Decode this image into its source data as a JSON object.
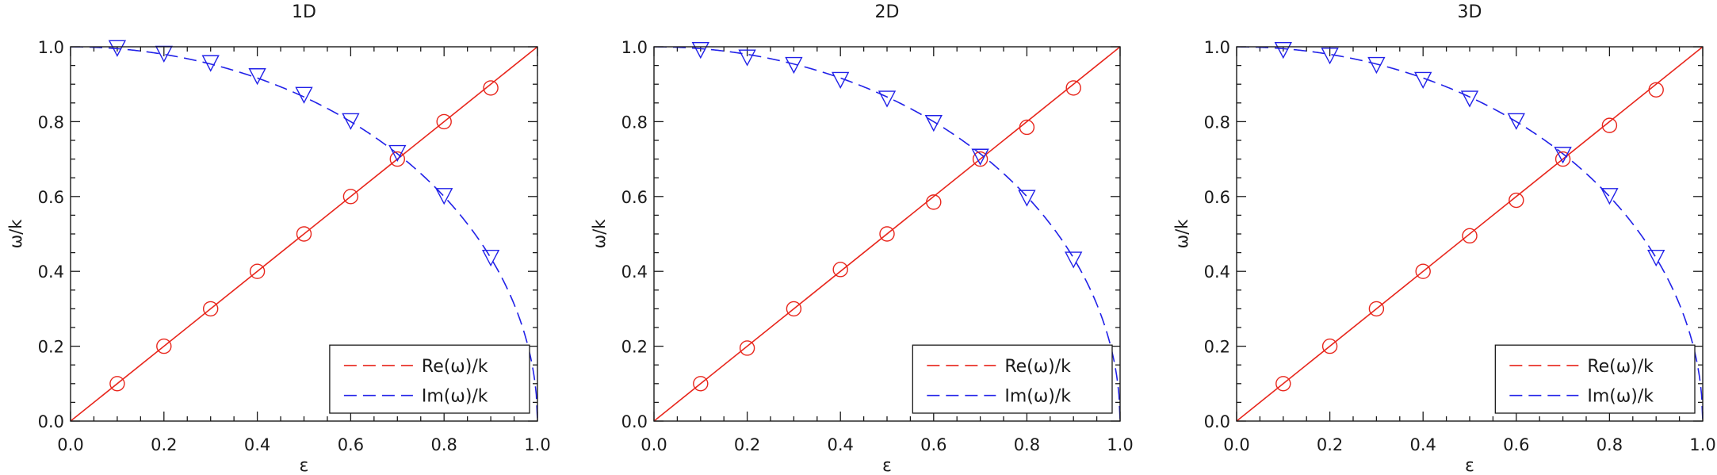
{
  "chart_data": [
    {
      "type": "line",
      "title": "1D",
      "xlabel": "ε",
      "ylabel": "ω/k",
      "xlim": [
        0.0,
        1.0
      ],
      "ylim": [
        0.0,
        1.0
      ],
      "xticks": [
        "0.0",
        "0.2",
        "0.4",
        "0.6",
        "0.8",
        "1.0"
      ],
      "yticks": [
        "0.0",
        "0.2",
        "0.4",
        "0.6",
        "0.8",
        "1.0"
      ],
      "legend_position": "bottom-right",
      "grid": false,
      "series": [
        {
          "name": "Re(ω)/k",
          "color": "#e8261c",
          "style": "line",
          "x": [
            0.0,
            1.0
          ],
          "y": [
            0.0,
            1.0
          ]
        },
        {
          "name": "Im(ω)/k",
          "color": "#2121e8",
          "style": "dashed",
          "function": "sqrt(1 - x^2)"
        }
      ],
      "markers": [
        {
          "series": "Re(ω)/k",
          "shape": "circle",
          "color": "#e8261c",
          "x": [
            0.1,
            0.2,
            0.3,
            0.4,
            0.5,
            0.6,
            0.7,
            0.8,
            0.9
          ],
          "y": [
            0.1,
            0.2,
            0.3,
            0.4,
            0.5,
            0.6,
            0.7,
            0.8,
            0.89
          ]
        },
        {
          "series": "Im(ω)/k",
          "shape": "triangle-down",
          "color": "#2121e8",
          "x": [
            0.1,
            0.2,
            0.3,
            0.4,
            0.5,
            0.6,
            0.7,
            0.8,
            0.9
          ],
          "y": [
            0.995,
            0.98,
            0.955,
            0.92,
            0.87,
            0.8,
            0.715,
            0.6,
            0.435
          ]
        }
      ]
    },
    {
      "type": "line",
      "title": "2D",
      "xlabel": "ε",
      "ylabel": "ω/k",
      "xlim": [
        0.0,
        1.0
      ],
      "ylim": [
        0.0,
        1.0
      ],
      "xticks": [
        "0.0",
        "0.2",
        "0.4",
        "0.6",
        "0.8",
        "1.0"
      ],
      "yticks": [
        "0.0",
        "0.2",
        "0.4",
        "0.6",
        "0.8",
        "1.0"
      ],
      "legend_position": "bottom-right",
      "grid": false,
      "series": [
        {
          "name": "Re(ω)/k",
          "color": "#e8261c",
          "style": "line",
          "x": [
            0.0,
            1.0
          ],
          "y": [
            0.0,
            1.0
          ]
        },
        {
          "name": "Im(ω)/k",
          "color": "#2121e8",
          "style": "dashed",
          "function": "sqrt(1 - x^2)"
        }
      ],
      "markers": [
        {
          "series": "Re(ω)/k",
          "shape": "circle",
          "color": "#e8261c",
          "x": [
            0.1,
            0.2,
            0.3,
            0.4,
            0.5,
            0.6,
            0.7,
            0.8,
            0.9
          ],
          "y": [
            0.1,
            0.195,
            0.3,
            0.405,
            0.5,
            0.585,
            0.7,
            0.785,
            0.89
          ]
        },
        {
          "series": "Im(ω)/k",
          "shape": "triangle-down",
          "color": "#2121e8",
          "x": [
            0.1,
            0.2,
            0.3,
            0.4,
            0.5,
            0.6,
            0.7,
            0.8,
            0.9
          ],
          "y": [
            0.99,
            0.97,
            0.95,
            0.91,
            0.86,
            0.795,
            0.705,
            0.595,
            0.43
          ]
        }
      ]
    },
    {
      "type": "line",
      "title": "3D",
      "xlabel": "ε",
      "ylabel": "ω/k",
      "xlim": [
        0.0,
        1.0
      ],
      "ylim": [
        0.0,
        1.0
      ],
      "xticks": [
        "0.0",
        "0.2",
        "0.4",
        "0.6",
        "0.8",
        "1.0"
      ],
      "yticks": [
        "0.0",
        "0.2",
        "0.4",
        "0.6",
        "0.8",
        "1.0"
      ],
      "legend_position": "bottom-right",
      "grid": false,
      "series": [
        {
          "name": "Re(ω)/k",
          "color": "#e8261c",
          "style": "line",
          "x": [
            0.0,
            1.0
          ],
          "y": [
            0.0,
            1.0
          ]
        },
        {
          "name": "Im(ω)/k",
          "color": "#2121e8",
          "style": "dashed",
          "function": "sqrt(1 - x^2)"
        }
      ],
      "markers": [
        {
          "series": "Re(ω)/k",
          "shape": "circle",
          "color": "#e8261c",
          "x": [
            0.1,
            0.2,
            0.3,
            0.4,
            0.5,
            0.6,
            0.7,
            0.8,
            0.9
          ],
          "y": [
            0.1,
            0.2,
            0.3,
            0.4,
            0.495,
            0.59,
            0.7,
            0.79,
            0.885
          ]
        },
        {
          "series": "Im(ω)/k",
          "shape": "triangle-down",
          "color": "#2121e8",
          "x": [
            0.1,
            0.2,
            0.3,
            0.4,
            0.5,
            0.6,
            0.7,
            0.8,
            0.9
          ],
          "y": [
            0.99,
            0.975,
            0.95,
            0.91,
            0.86,
            0.8,
            0.71,
            0.6,
            0.435
          ]
        }
      ]
    }
  ]
}
